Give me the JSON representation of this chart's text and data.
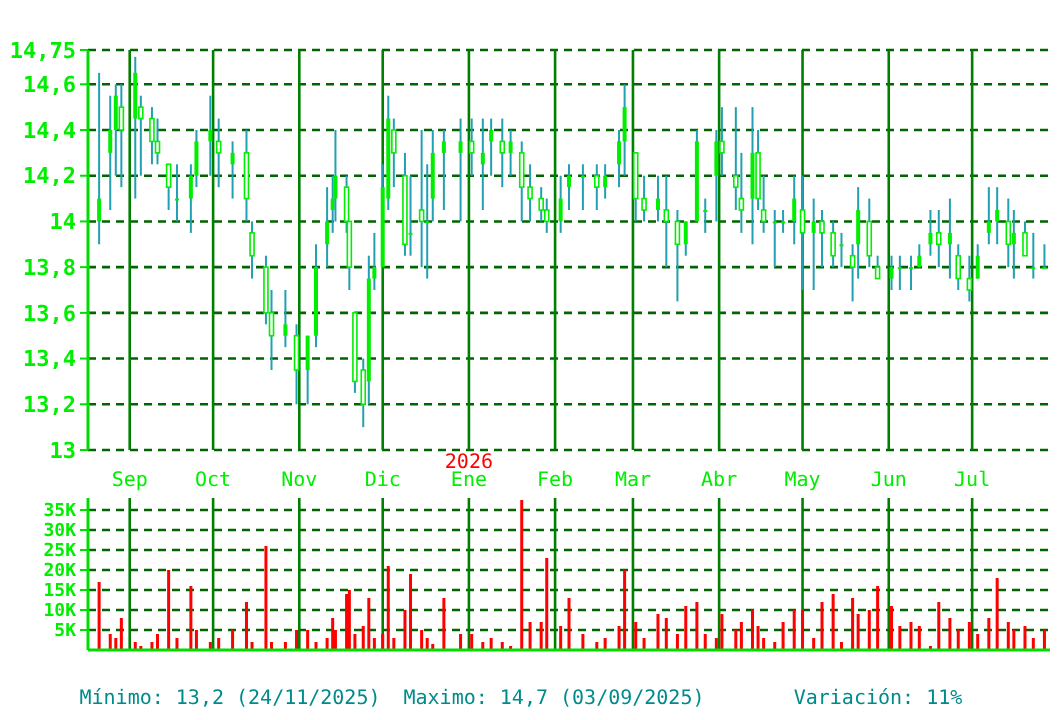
{
  "chart_data": [
    {
      "type": "candlestick",
      "color": "#00ee00",
      "annotations": [
        "2026"
      ],
      "x": [
        "2025-08-21",
        "2025-08-25",
        "2025-08-27",
        "2025-08-29",
        "2025-09-03",
        "2025-09-05",
        "2025-09-09",
        "2025-09-11",
        "2025-09-15",
        "2025-09-18",
        "2025-09-23",
        "2025-09-25",
        "2025-09-30",
        "2025-10-03",
        "2025-10-08",
        "2025-10-13",
        "2025-10-15",
        "2025-10-20",
        "2025-10-22",
        "2025-10-27",
        "2025-10-31",
        "2025-11-04",
        "2025-11-07",
        "2025-11-11",
        "2025-11-13",
        "2025-11-14",
        "2025-11-18",
        "2025-11-19",
        "2025-11-21",
        "2025-11-24",
        "2025-11-26",
        "2025-11-28",
        "2025-12-01",
        "2025-12-03",
        "2025-12-05",
        "2025-12-09",
        "2025-12-11",
        "2025-12-15",
        "2025-12-17",
        "2025-12-19",
        "2025-12-23",
        "2025-12-29",
        "2026-01-02",
        "2026-01-06",
        "2026-01-09",
        "2026-01-13",
        "2026-01-16",
        "2026-01-20",
        "2026-01-23",
        "2026-01-27",
        "2026-01-29",
        "2026-02-03",
        "2026-02-06",
        "2026-02-11",
        "2026-02-16",
        "2026-02-19",
        "2026-02-24",
        "2026-02-26",
        "2026-03-02",
        "2026-03-05",
        "2026-03-10",
        "2026-03-13",
        "2026-03-17",
        "2026-03-20",
        "2026-03-24",
        "2026-03-27",
        "2026-03-31",
        "2026-04-02",
        "2026-04-07",
        "2026-04-09",
        "2026-04-13",
        "2026-04-15",
        "2026-04-17",
        "2026-04-21",
        "2026-04-24",
        "2026-04-28",
        "2026-05-01",
        "2026-05-05",
        "2026-05-08",
        "2026-05-12",
        "2026-05-15",
        "2026-05-19",
        "2026-05-21",
        "2026-05-25",
        "2026-05-28",
        "2026-06-02",
        "2026-06-05",
        "2026-06-09",
        "2026-06-12",
        "2026-06-16",
        "2026-06-19",
        "2026-06-23",
        "2026-06-26",
        "2026-06-30",
        "2026-07-03",
        "2026-07-07",
        "2026-07-10",
        "2026-07-14",
        "2026-07-16",
        "2026-07-20",
        "2026-07-23",
        "2026-07-27"
      ],
      "ohlc": [
        [
          14.0,
          14.65,
          13.9,
          14.1
        ],
        [
          14.3,
          14.55,
          14.05,
          14.4
        ],
        [
          14.4,
          14.6,
          14.2,
          14.55
        ],
        [
          14.5,
          14.6,
          14.15,
          14.4
        ],
        [
          14.45,
          14.72,
          14.1,
          14.65
        ],
        [
          14.5,
          14.55,
          14.2,
          14.45
        ],
        [
          14.45,
          14.5,
          14.25,
          14.35
        ],
        [
          14.35,
          14.45,
          14.25,
          14.3
        ],
        [
          14.25,
          14.25,
          14.05,
          14.15
        ],
        [
          14.1,
          14.25,
          14.0,
          14.1
        ],
        [
          14.1,
          14.25,
          13.95,
          14.2
        ],
        [
          14.2,
          14.4,
          14.15,
          14.35
        ],
        [
          14.35,
          14.55,
          14.2,
          14.4
        ],
        [
          14.35,
          14.45,
          14.15,
          14.3
        ],
        [
          14.25,
          14.35,
          14.1,
          14.3
        ],
        [
          14.3,
          14.4,
          14.0,
          14.1
        ],
        [
          13.95,
          14.0,
          13.75,
          13.85
        ],
        [
          13.8,
          13.85,
          13.55,
          13.6
        ],
        [
          13.6,
          13.7,
          13.35,
          13.5
        ],
        [
          13.5,
          13.7,
          13.45,
          13.55
        ],
        [
          13.5,
          13.55,
          13.2,
          13.35
        ],
        [
          13.35,
          13.5,
          13.2,
          13.5
        ],
        [
          13.5,
          13.9,
          13.45,
          13.8
        ],
        [
          13.9,
          14.15,
          13.8,
          14.0
        ],
        [
          14.05,
          14.2,
          13.95,
          14.1
        ],
        [
          14.1,
          14.4,
          14.0,
          14.2
        ],
        [
          14.15,
          14.2,
          13.95,
          14.0
        ],
        [
          14.0,
          14.0,
          13.7,
          13.8
        ],
        [
          13.6,
          13.6,
          13.25,
          13.3
        ],
        [
          13.35,
          13.4,
          13.1,
          13.2
        ],
        [
          13.3,
          13.85,
          13.2,
          13.75
        ],
        [
          13.75,
          13.95,
          13.7,
          13.8
        ],
        [
          13.8,
          14.25,
          13.8,
          14.15
        ],
        [
          14.1,
          14.55,
          14.05,
          14.45
        ],
        [
          14.4,
          14.45,
          14.15,
          14.3
        ],
        [
          14.2,
          14.3,
          13.85,
          13.9
        ],
        [
          13.95,
          14.2,
          13.85,
          13.95
        ],
        [
          14.05,
          14.4,
          13.8,
          14.0
        ],
        [
          14.0,
          14.25,
          13.75,
          14.0
        ],
        [
          14.1,
          14.4,
          14.0,
          14.3
        ],
        [
          14.3,
          14.4,
          14.05,
          14.35
        ],
        [
          14.3,
          14.45,
          14.0,
          14.35
        ],
        [
          14.35,
          14.45,
          14.2,
          14.3
        ],
        [
          14.25,
          14.45,
          14.05,
          14.3
        ],
        [
          14.35,
          14.45,
          14.2,
          14.4
        ],
        [
          14.35,
          14.45,
          14.15,
          14.3
        ],
        [
          14.3,
          14.4,
          14.2,
          14.35
        ],
        [
          14.3,
          14.35,
          14.0,
          14.15
        ],
        [
          14.15,
          14.25,
          14.0,
          14.1
        ],
        [
          14.1,
          14.15,
          14.0,
          14.05
        ],
        [
          14.05,
          14.1,
          13.95,
          14.0
        ],
        [
          14.0,
          14.2,
          13.95,
          14.1
        ],
        [
          14.15,
          14.25,
          14.05,
          14.2
        ],
        [
          14.2,
          14.25,
          14.05,
          14.2
        ],
        [
          14.2,
          14.25,
          14.05,
          14.15
        ],
        [
          14.15,
          14.25,
          14.1,
          14.2
        ],
        [
          14.25,
          14.4,
          14.15,
          14.35
        ],
        [
          14.35,
          14.6,
          14.2,
          14.5
        ],
        [
          14.3,
          14.3,
          14.0,
          14.1
        ],
        [
          14.1,
          14.2,
          14.0,
          14.05
        ],
        [
          14.05,
          14.2,
          14.0,
          14.1
        ],
        [
          14.05,
          14.2,
          13.8,
          14.0
        ],
        [
          14.0,
          14.05,
          13.65,
          13.9
        ],
        [
          13.9,
          14.0,
          13.85,
          14.0
        ],
        [
          14.0,
          14.4,
          14.0,
          14.35
        ],
        [
          14.05,
          14.1,
          13.95,
          14.05
        ],
        [
          14.2,
          14.4,
          14.0,
          14.35
        ],
        [
          14.35,
          14.5,
          14.2,
          14.3
        ],
        [
          14.2,
          14.5,
          14.05,
          14.15
        ],
        [
          14.1,
          14.3,
          13.95,
          14.05
        ],
        [
          14.1,
          14.5,
          13.9,
          14.3
        ],
        [
          14.3,
          14.4,
          14.05,
          14.1
        ],
        [
          14.05,
          14.2,
          13.95,
          14.0
        ],
        [
          14.0,
          14.05,
          13.8,
          14.0
        ],
        [
          14.0,
          14.05,
          13.95,
          14.0
        ],
        [
          14.0,
          14.2,
          13.9,
          14.1
        ],
        [
          14.05,
          14.2,
          13.7,
          13.95
        ],
        [
          13.95,
          14.1,
          13.7,
          14.0
        ],
        [
          14.0,
          14.05,
          13.8,
          13.95
        ],
        [
          13.95,
          14.0,
          13.8,
          13.85
        ],
        [
          13.9,
          13.95,
          13.8,
          13.9
        ],
        [
          13.85,
          13.9,
          13.65,
          13.8
        ],
        [
          13.9,
          14.15,
          13.75,
          14.05
        ],
        [
          14.0,
          14.1,
          13.8,
          13.85
        ],
        [
          13.8,
          13.85,
          13.75,
          13.75
        ],
        [
          13.75,
          13.85,
          13.7,
          13.8
        ],
        [
          13.8,
          13.85,
          13.7,
          13.8
        ],
        [
          13.8,
          13.85,
          13.7,
          13.8
        ],
        [
          13.8,
          13.9,
          13.8,
          13.85
        ],
        [
          13.9,
          14.05,
          13.85,
          13.95
        ],
        [
          13.95,
          14.05,
          13.8,
          13.9
        ],
        [
          13.9,
          14.1,
          13.75,
          13.95
        ],
        [
          13.85,
          13.9,
          13.7,
          13.75
        ],
        [
          13.75,
          13.85,
          13.65,
          13.7
        ],
        [
          13.75,
          13.9,
          13.75,
          13.85
        ],
        [
          13.95,
          14.15,
          13.9,
          14.0
        ],
        [
          14.0,
          14.15,
          13.9,
          14.05
        ],
        [
          14.0,
          14.1,
          13.8,
          13.9
        ],
        [
          13.9,
          14.05,
          13.75,
          13.95
        ],
        [
          13.95,
          14.0,
          13.85,
          13.85
        ],
        [
          13.8,
          13.95,
          13.75,
          13.8
        ],
        [
          13.8,
          13.9,
          13.8,
          13.8
        ]
      ],
      "xlim": [
        "2025-08-17",
        "2026-07-29"
      ],
      "xticks": [
        {
          "value": "2025-09-01",
          "label": "Sep"
        },
        {
          "value": "2025-10-01",
          "label": "Oct"
        },
        {
          "value": "2025-11-01",
          "label": "Nov"
        },
        {
          "value": "2025-12-01",
          "label": "Dic"
        },
        {
          "value": "2026-01-01",
          "label": "Ene"
        },
        {
          "value": "2026-02-01",
          "label": "Feb"
        },
        {
          "value": "2026-03-01",
          "label": "Mar"
        },
        {
          "value": "2026-04-01",
          "label": "Abr"
        },
        {
          "value": "2026-05-01",
          "label": "May"
        },
        {
          "value": "2026-06-01",
          "label": "Jun"
        },
        {
          "value": "2026-07-01",
          "label": "Jul"
        }
      ],
      "ylim": [
        13,
        14.75
      ],
      "yticks": [
        {
          "value": 13,
          "label": "13"
        },
        {
          "value": 13.2,
          "label": "13,2"
        },
        {
          "value": 13.4,
          "label": "13,4"
        },
        {
          "value": 13.6,
          "label": "13,6"
        },
        {
          "value": 13.8,
          "label": "13,8"
        },
        {
          "value": 14,
          "label": "14"
        },
        {
          "value": 14.2,
          "label": "14,2"
        },
        {
          "value": 14.4,
          "label": "14,4"
        },
        {
          "value": 14.6,
          "label": "14,6"
        },
        {
          "value": 14.75,
          "label": "14,75"
        }
      ],
      "grid": true
    },
    {
      "type": "bar",
      "color": "#ff0000",
      "tick_labels": "y",
      "annotations": [
        "Mínimo: 13,2 (24/11/2025)",
        "Maximo: 14,7 (03/09/2025)",
        "Variación: 11%"
      ],
      "x": [
        "2025-08-21",
        "2025-08-25",
        "2025-08-27",
        "2025-08-29",
        "2025-09-03",
        "2025-09-05",
        "2025-09-09",
        "2025-09-11",
        "2025-09-15",
        "2025-09-18",
        "2025-09-23",
        "2025-09-25",
        "2025-09-30",
        "2025-10-03",
        "2025-10-08",
        "2025-10-13",
        "2025-10-15",
        "2025-10-20",
        "2025-10-22",
        "2025-10-27",
        "2025-10-31",
        "2025-11-04",
        "2025-11-07",
        "2025-11-11",
        "2025-11-13",
        "2025-11-14",
        "2025-11-18",
        "2025-11-19",
        "2025-11-21",
        "2025-11-24",
        "2025-11-26",
        "2025-11-28",
        "2025-12-01",
        "2025-12-03",
        "2025-12-05",
        "2025-12-09",
        "2025-12-11",
        "2025-12-15",
        "2025-12-17",
        "2025-12-19",
        "2025-12-23",
        "2025-12-29",
        "2026-01-02",
        "2026-01-06",
        "2026-01-09",
        "2026-01-13",
        "2026-01-16",
        "2026-01-20",
        "2026-01-23",
        "2026-01-27",
        "2026-01-29",
        "2026-02-03",
        "2026-02-06",
        "2026-02-11",
        "2026-02-16",
        "2026-02-19",
        "2026-02-24",
        "2026-02-26",
        "2026-03-02",
        "2026-03-05",
        "2026-03-10",
        "2026-03-13",
        "2026-03-17",
        "2026-03-20",
        "2026-03-24",
        "2026-03-27",
        "2026-03-31",
        "2026-04-02",
        "2026-04-07",
        "2026-04-09",
        "2026-04-13",
        "2026-04-15",
        "2026-04-17",
        "2026-04-21",
        "2026-04-24",
        "2026-04-28",
        "2026-05-01",
        "2026-05-05",
        "2026-05-08",
        "2026-05-12",
        "2026-05-15",
        "2026-05-19",
        "2026-05-21",
        "2026-05-25",
        "2026-05-28",
        "2026-06-02",
        "2026-06-05",
        "2026-06-09",
        "2026-06-12",
        "2026-06-16",
        "2026-06-19",
        "2026-06-23",
        "2026-06-26",
        "2026-06-30",
        "2026-07-03",
        "2026-07-07",
        "2026-07-10",
        "2026-07-14",
        "2026-07-16",
        "2026-07-20",
        "2026-07-23",
        "2026-07-27"
      ],
      "values": [
        17,
        4,
        3,
        8,
        2,
        1,
        2,
        4,
        20,
        3,
        16,
        5,
        2,
        3,
        5,
        12,
        2,
        26,
        2,
        2,
        5,
        5,
        2,
        3,
        8,
        5,
        14,
        15,
        4,
        6,
        13,
        3,
        4,
        21,
        3,
        10,
        19,
        5,
        3,
        1.5,
        13,
        4,
        4,
        2,
        3,
        2,
        1,
        37.5,
        7,
        7,
        23,
        6,
        13,
        4,
        2,
        3,
        6,
        20,
        7,
        3,
        9,
        8,
        4,
        11,
        12,
        4,
        3,
        9,
        5,
        7,
        10,
        6,
        3,
        2,
        7,
        10,
        10,
        3,
        12,
        14,
        2,
        13,
        9,
        10,
        16,
        11,
        6,
        7,
        6,
        1,
        12,
        8,
        5,
        7,
        4,
        8,
        18,
        7,
        5,
        6,
        3,
        5
      ],
      "xlim": [
        "2025-08-17",
        "2026-07-29"
      ],
      "xticks": [
        {
          "value": "2025-09-01",
          "label": null
        },
        {
          "value": "2025-10-01",
          "label": null
        },
        {
          "value": "2025-11-01",
          "label": null
        },
        {
          "value": "2025-12-01",
          "label": null
        },
        {
          "value": "2026-01-01",
          "label": null
        },
        {
          "value": "2026-02-01",
          "label": null
        },
        {
          "value": "2026-03-01",
          "label": null
        },
        {
          "value": "2026-04-01",
          "label": null
        },
        {
          "value": "2026-05-01",
          "label": null
        },
        {
          "value": "2026-06-01",
          "label": null
        },
        {
          "value": "2026-07-01",
          "label": null
        }
      ],
      "ylim": [
        0,
        38
      ],
      "yticks": [
        {
          "value": 5,
          "label": "5K"
        },
        {
          "value": 10,
          "label": "10K"
        },
        {
          "value": 15,
          "label": "15K"
        },
        {
          "value": 20,
          "label": "20K"
        },
        {
          "value": 25,
          "label": "25K"
        },
        {
          "value": 30,
          "label": "30K"
        },
        {
          "value": 35,
          "label": "35K"
        }
      ],
      "grid": true
    }
  ]
}
